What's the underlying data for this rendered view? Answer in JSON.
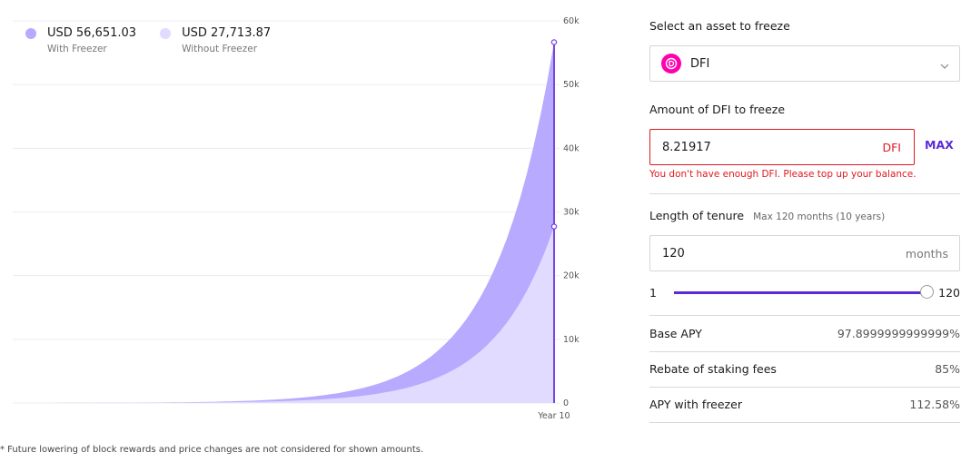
{
  "legend": {
    "with": {
      "value": "USD 56,651.03",
      "label": "With Freezer",
      "color": "#b7aaff"
    },
    "without": {
      "value": "USD 27,713.87",
      "label": "Without Freezer",
      "color": "#e0dbff"
    }
  },
  "footnote": "* Future lowering of block rewards and price changes are not considered for shown amounts.",
  "chart_data": {
    "type": "area",
    "x_label_end": "Year 10",
    "ylim": [
      0,
      60000
    ],
    "y_ticks": [
      "0",
      "10k",
      "20k",
      "30k",
      "40k",
      "50k",
      "60k"
    ],
    "grid": true,
    "series": [
      {
        "name": "With Freezer",
        "end_value": 56651.03,
        "color": "#b7aaff"
      },
      {
        "name": "Without Freezer",
        "end_value": 27713.87,
        "color": "#e0dbff"
      }
    ],
    "marker_color": "#7b45e0"
  },
  "form": {
    "asset_label": "Select an asset to freeze",
    "asset_selected": "DFI",
    "asset_icon_color": "#ff00af",
    "amount_label": "Amount of DFI to freeze",
    "amount_value": "8.21917",
    "amount_unit": "DFI",
    "max_label": "MAX",
    "error": "You don't have enough DFI. Please top up your balance.",
    "tenure_label": "Length of tenure",
    "tenure_hint": "Max 120 months (10 years)",
    "tenure_value": "120",
    "tenure_unit": "months",
    "slider": {
      "min": "1",
      "max": "120",
      "value": 120,
      "range_max": 120
    },
    "stats": [
      {
        "label": "Base APY",
        "value": "97.8999999999999%"
      },
      {
        "label": "Rebate of staking fees",
        "value": "85%"
      },
      {
        "label": "APY with freezer",
        "value": "112.58%"
      }
    ]
  }
}
